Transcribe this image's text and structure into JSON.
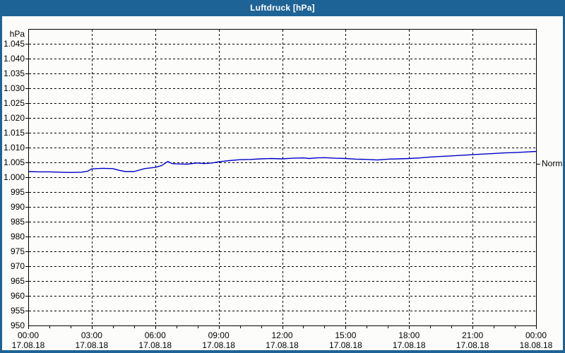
{
  "window": {
    "title": "Luftdruck [hPa]"
  },
  "colors": {
    "titlebar_bg": "#1E6396",
    "titlebar_text": "#FFFFFF",
    "page_border": "#1E6396",
    "page_bg": "#FCFDFA",
    "line": "#0000C8",
    "axis": "#000000",
    "grid": "#000000",
    "text": "#000000"
  },
  "chart_data": {
    "type": "line",
    "title": "Luftdruck [hPa]",
    "ylabel": "hPa",
    "grid": "dashed",
    "legend": "none",
    "y_axis": {
      "unit_label": "hPa",
      "min": 950,
      "max": 1050,
      "tick_step": 5,
      "tick_values": [
        950,
        955,
        960,
        965,
        970,
        975,
        980,
        985,
        990,
        995,
        1000,
        1005,
        1010,
        1015,
        1020,
        1025,
        1030,
        1035,
        1040,
        1045
      ],
      "tick_labels": [
        "950",
        "955",
        "960",
        "965",
        "970",
        "975",
        "980",
        "985",
        "990",
        "995",
        "1.000",
        "1.005",
        "1.010",
        "1.015",
        "1.020",
        "1.025",
        "1.030",
        "1.035",
        "1.040",
        "1.045"
      ]
    },
    "x_axis": {
      "range_hours": [
        0,
        24
      ],
      "major_tick_hours": 3,
      "minor_tick_hours": 1,
      "tick_times": [
        "00:00",
        "03:00",
        "06:00",
        "09:00",
        "12:00",
        "15:00",
        "18:00",
        "21:00",
        "00:00"
      ],
      "tick_dates": [
        "17.08.18",
        "17.08.18",
        "17.08.18",
        "17.08.18",
        "17.08.18",
        "17.08.18",
        "17.08.18",
        "17.08.18",
        "18.08.18"
      ]
    },
    "annotations": [
      {
        "label": "Normal",
        "value_hpa": 1004.6
      }
    ],
    "series": [
      {
        "name": "Luftdruck",
        "x_hours": [
          0,
          0.5,
          1,
          1.5,
          2,
          2.5,
          2.8,
          3,
          3.5,
          4,
          4.3,
          4.6,
          5,
          5.5,
          6,
          6.3,
          6.6,
          6.8,
          7,
          7.5,
          8,
          8.3,
          8.7,
          9,
          9.5,
          10,
          10.5,
          11,
          11.5,
          12,
          12.5,
          13,
          13.3,
          13.6,
          14,
          14.5,
          15,
          15.5,
          16,
          16.5,
          17,
          17.5,
          18,
          18.5,
          19,
          19.5,
          20,
          20.5,
          21,
          21.5,
          22,
          22.5,
          23,
          23.5,
          24
        ],
        "values_hpa": [
          1001.9,
          1001.8,
          1001.8,
          1001.7,
          1001.6,
          1001.7,
          1002.0,
          1002.8,
          1003.0,
          1002.9,
          1002.3,
          1001.9,
          1001.9,
          1002.9,
          1003.3,
          1003.9,
          1005.3,
          1004.6,
          1004.5,
          1004.4,
          1004.8,
          1004.6,
          1004.8,
          1005.2,
          1005.6,
          1005.9,
          1006.0,
          1006.2,
          1006.3,
          1006.2,
          1006.4,
          1006.5,
          1006.3,
          1006.5,
          1006.6,
          1006.4,
          1006.3,
          1006.1,
          1006.0,
          1005.8,
          1006.1,
          1006.2,
          1006.3,
          1006.5,
          1006.8,
          1007.0,
          1007.2,
          1007.4,
          1007.6,
          1007.8,
          1008.0,
          1008.2,
          1008.3,
          1008.5,
          1008.7
        ]
      }
    ]
  }
}
